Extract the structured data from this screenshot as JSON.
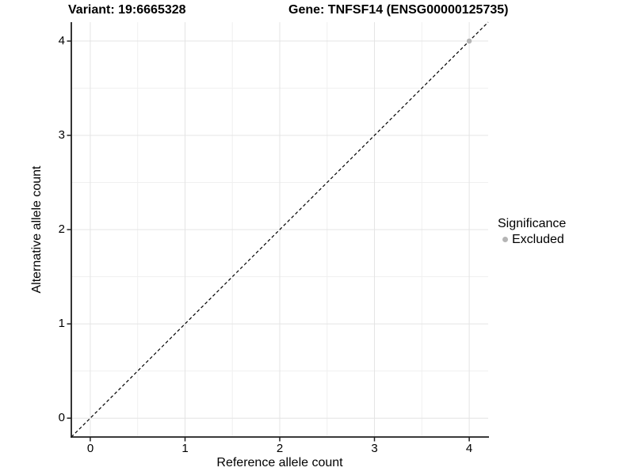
{
  "titles": {
    "variant": "Variant: 19:6665328",
    "gene": "Gene: TNFSF14 (ENSG00000125735)"
  },
  "chart_data": {
    "type": "scatter",
    "title_left": "Variant: 19:6665328",
    "title_right": "Gene: TNFSF14 (ENSG00000125735)",
    "xlabel": "Reference allele count",
    "ylabel": "Alternative allele count",
    "xlim": [
      -0.2,
      4.2
    ],
    "ylim": [
      -0.2,
      4.2
    ],
    "x_ticks": [
      0,
      1,
      2,
      3,
      4
    ],
    "y_ticks": [
      0,
      1,
      2,
      3,
      4
    ],
    "grid": "major+minor on white background",
    "panel_border": "left and bottom axis lines only",
    "reference_line": {
      "slope": 1,
      "intercept": 0,
      "style": "dashed",
      "color": "#000000"
    },
    "series": [
      {
        "name": "Excluded",
        "color": "#b5b5b5",
        "points": [
          {
            "x": 4,
            "y": 4
          }
        ]
      }
    ],
    "legend": {
      "title": "Significance",
      "position": "right",
      "entries": [
        {
          "label": "Excluded",
          "color": "#b5b5b5",
          "marker": "circle"
        }
      ]
    },
    "colors": {
      "grid_major": "#e4e4e4",
      "grid_minor": "#f0f0f0",
      "axis_line": "#1f1f1f",
      "text": "#000000"
    }
  }
}
